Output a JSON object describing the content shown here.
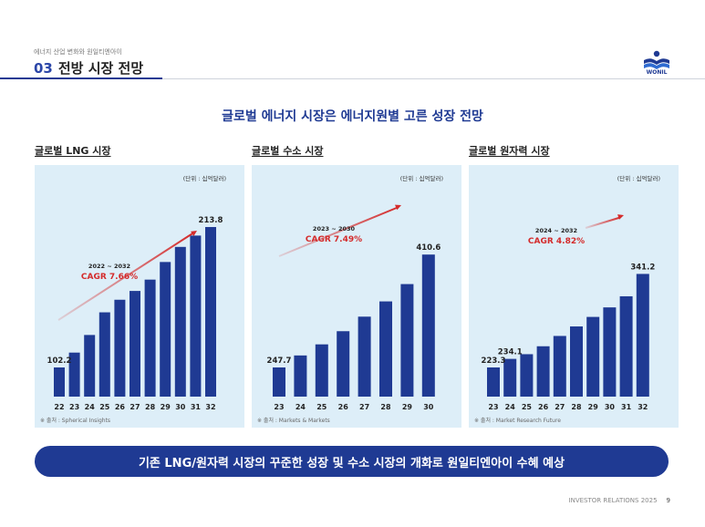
{
  "header": {
    "subtitle": "에너지 산업 변화와 원일티엔아이",
    "section_number": "03",
    "section_title": "전방 시장 전망",
    "logo_text": "WONIL"
  },
  "headline": "글로벌 에너지 시장은 에너지원별 고른 성장 전망",
  "charts": [
    {
      "title": "글로벌 LNG 시장"
    },
    {
      "title": "글로벌 수소 시장"
    },
    {
      "title": "글로벌 원자력 시장"
    }
  ],
  "chart_data": [
    {
      "type": "bar",
      "title": "글로벌 LNG 시장",
      "unit_label": "(단위 : 십억달러)",
      "categories": [
        "22",
        "23",
        "24",
        "25",
        "26",
        "27",
        "28",
        "29",
        "30",
        "31",
        "32"
      ],
      "values": [
        102.2,
        114,
        128,
        146,
        156,
        163,
        172,
        186,
        198,
        207,
        213.8
      ],
      "labeled_values": {
        "first": "102.2",
        "last": "213.8"
      },
      "cagr_period": "2022 ~ 2032",
      "cagr": "CAGR 7.66%",
      "source": "※ 출처 : Spherical Insights",
      "colors": {
        "bar": "#1f3a93",
        "background": "#ddeef8",
        "accent": "#d42b2b"
      }
    },
    {
      "type": "bar",
      "title": "글로벌 수소 시장",
      "unit_label": "(단위 : 십억달러)",
      "categories": [
        "23",
        "24",
        "25",
        "26",
        "27",
        "28",
        "29",
        "30"
      ],
      "values": [
        247.7,
        265,
        281,
        300,
        321,
        343,
        368,
        410.6
      ],
      "labeled_values": {
        "first": "247.7",
        "last": "410.6"
      },
      "cagr_period": "2023 ~ 2030",
      "cagr": "CAGR 7.49%",
      "source": "※ 출처 : Markets & Markets",
      "colors": {
        "bar": "#1f3a93",
        "background": "#ddeef8",
        "accent": "#d42b2b"
      }
    },
    {
      "type": "bar",
      "title": "글로벌 원자력 시장",
      "unit_label": "(단위 : 십억달러)",
      "categories": [
        "23",
        "24",
        "25",
        "26",
        "27",
        "28",
        "29",
        "30",
        "31",
        "32"
      ],
      "values": [
        223.3,
        234.1,
        240,
        250,
        263,
        275,
        287,
        299,
        313,
        341.2
      ],
      "labeled_values": {
        "first": "223.3",
        "second": "234.1",
        "last": "341.2"
      },
      "cagr_period": "2024 ~ 2032",
      "cagr": "CAGR 4.82%",
      "source": "※ 출처 : Market Research Future",
      "colors": {
        "bar": "#1f3a93",
        "background": "#ddeef8",
        "accent": "#d42b2b"
      }
    }
  ],
  "banner": "기존 LNG/원자력 시장의 꾸준한 성장 및 수소 시장의 개화로 원일티엔아이 수혜 예상",
  "footer": {
    "text": "INVESTOR RELATIONS 2025",
    "page": "9"
  }
}
